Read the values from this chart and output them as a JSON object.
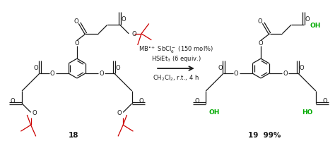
{
  "background_color": "#ffffff",
  "black_color": "#1a1a1a",
  "tbu_color": "#cc0000",
  "oh_color": "#00aa00",
  "label_18": "18",
  "label_19": "19  99%",
  "reagent_line1": "MB$^{\\bullet+}$ SbCl$_6^-$ (150 mol%)",
  "reagent_line2": "HSiEt$_3$ (6 equiv.)",
  "reagent_line3": "CH$_2$Cl$_2$, r.t., 4 h"
}
